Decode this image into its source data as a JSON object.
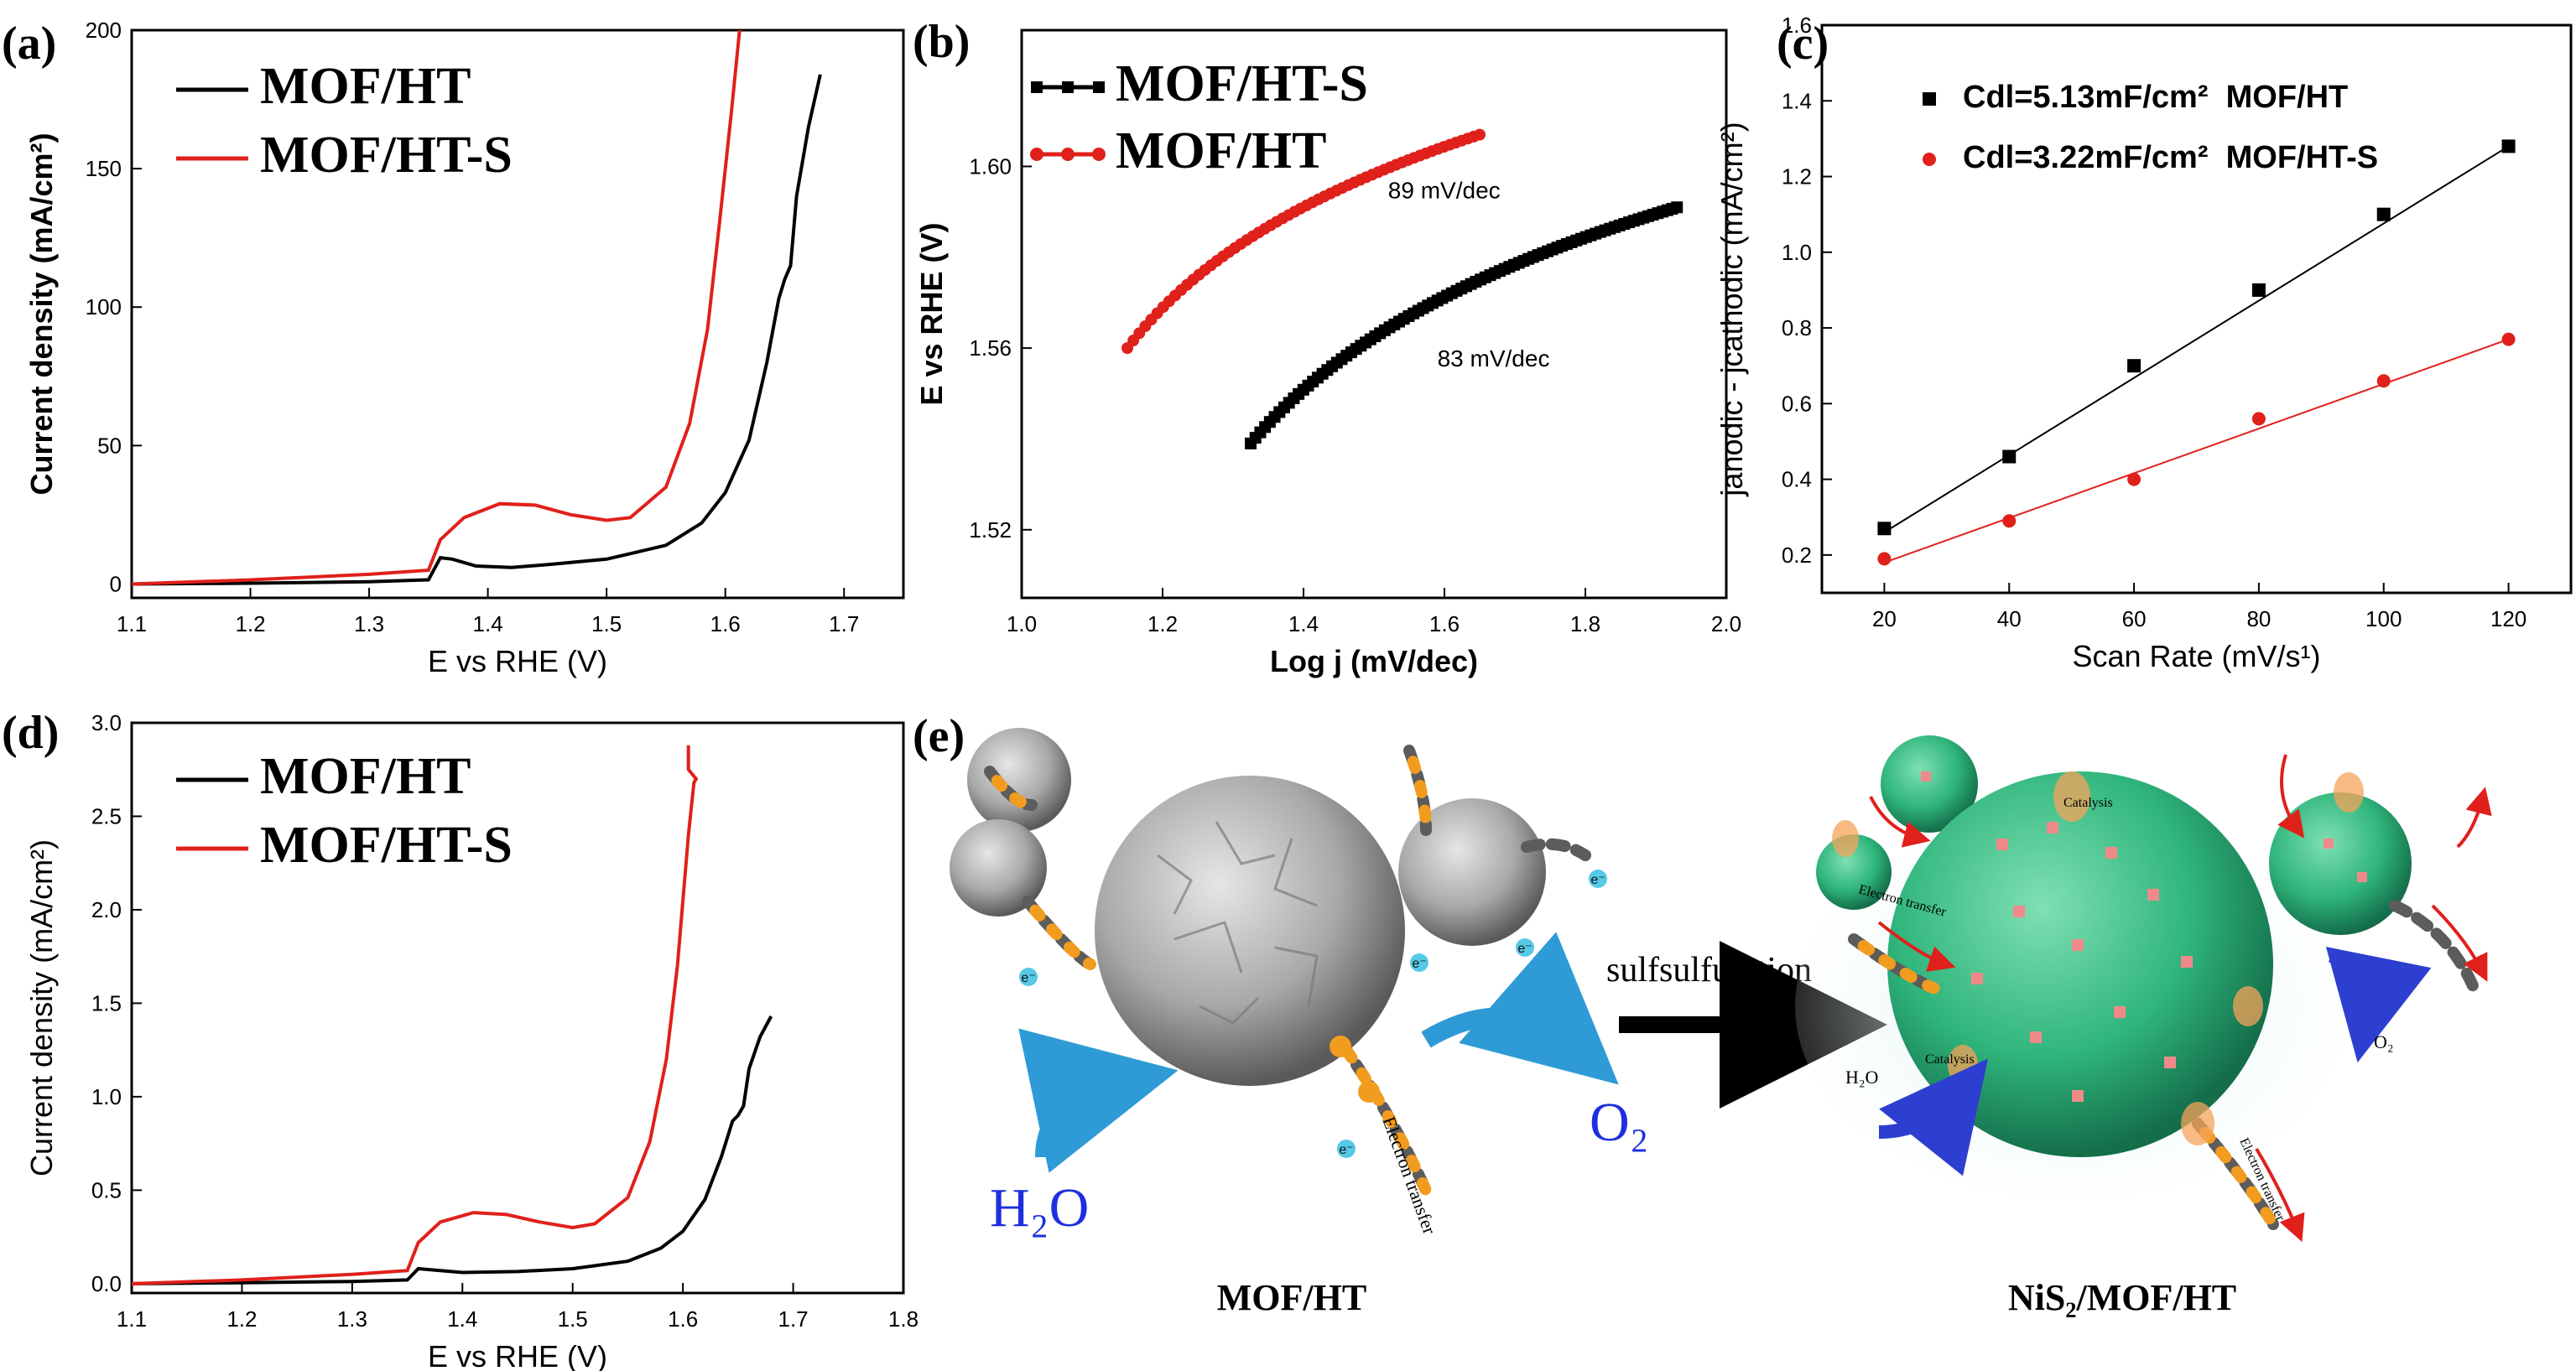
{
  "panel_labels": {
    "a": "(a)",
    "b": "(b)",
    "c": "(c)",
    "d": "(d)",
    "e": "(e)"
  },
  "chart_data": [
    {
      "id": "a",
      "type": "line",
      "xlabel": "E vs RHE (V)",
      "ylabel": "Current density (mA/cm²)",
      "xlim": [
        1.1,
        1.75
      ],
      "ylim": [
        -5,
        200
      ],
      "xticks": [
        1.1,
        1.2,
        1.3,
        1.4,
        1.5,
        1.6,
        1.7
      ],
      "yticks": [
        0,
        50,
        100,
        150,
        200
      ],
      "legend": [
        "MOF/HT",
        "MOF/HT-S"
      ],
      "series": [
        {
          "name": "MOF/HT",
          "color": "#000000",
          "points": [
            [
              1.1,
              0
            ],
            [
              1.2,
              0.3
            ],
            [
              1.3,
              0.8
            ],
            [
              1.35,
              1.5
            ],
            [
              1.36,
              9.5
            ],
            [
              1.37,
              9
            ],
            [
              1.39,
              6.5
            ],
            [
              1.42,
              6
            ],
            [
              1.45,
              7
            ],
            [
              1.5,
              9
            ],
            [
              1.55,
              14
            ],
            [
              1.58,
              22
            ],
            [
              1.6,
              33
            ],
            [
              1.62,
              52
            ],
            [
              1.635,
              80
            ],
            [
              1.645,
              103
            ],
            [
              1.65,
              110
            ],
            [
              1.655,
              115
            ],
            [
              1.66,
              140
            ],
            [
              1.67,
              165
            ],
            [
              1.68,
              184
            ]
          ]
        },
        {
          "name": "MOF/HT-S",
          "color": "#e0201b",
          "points": [
            [
              1.1,
              0
            ],
            [
              1.2,
              1.5
            ],
            [
              1.3,
              3.5
            ],
            [
              1.35,
              5
            ],
            [
              1.36,
              16
            ],
            [
              1.38,
              24
            ],
            [
              1.41,
              29
            ],
            [
              1.44,
              28.5
            ],
            [
              1.47,
              25
            ],
            [
              1.5,
              23
            ],
            [
              1.52,
              24
            ],
            [
              1.55,
              35
            ],
            [
              1.57,
              58
            ],
            [
              1.585,
              92
            ],
            [
              1.595,
              130
            ],
            [
              1.605,
              170
            ],
            [
              1.612,
              200
            ]
          ]
        }
      ]
    },
    {
      "id": "b",
      "type": "scatter",
      "xlabel": "Log j (mV/dec)",
      "ylabel": "E vs RHE (V)",
      "xlim": [
        1.0,
        2.0
      ],
      "ylim": [
        1.505,
        1.63
      ],
      "xticks": [
        1.0,
        1.2,
        1.4,
        1.6,
        1.8,
        2.0
      ],
      "yticks": [
        1.52,
        1.56,
        1.6
      ],
      "legend": [
        "MOF/HT-S",
        "MOF/HT"
      ],
      "annotations": [
        {
          "text": "89 mV/dec",
          "x": 1.52,
          "y": 1.593
        },
        {
          "text": "83 mV/dec",
          "x": 1.59,
          "y": 1.556
        }
      ],
      "series": [
        {
          "name": "MOF/HT-S",
          "color": "#000000",
          "marker": "square",
          "x_start": 1.325,
          "x_end": 1.93,
          "y_start": 1.539,
          "y_end": 1.591,
          "count": 90
        },
        {
          "name": "MOF/HT",
          "color": "#e0201b",
          "marker": "circle",
          "x_start": 1.15,
          "x_end": 1.65,
          "y_start": 1.56,
          "y_end": 1.607,
          "count": 60
        }
      ]
    },
    {
      "id": "c",
      "type": "scatter",
      "xlabel": "Scan Rate (mV/s¹)",
      "ylabel": "janodic - jcathodic (mA/cm²)",
      "xlim": [
        10,
        130
      ],
      "ylim": [
        0.1,
        1.6
      ],
      "xticks": [
        20,
        40,
        60,
        80,
        100,
        120
      ],
      "yticks": [
        0.2,
        0.4,
        0.6,
        0.8,
        1.0,
        1.2,
        1.4,
        1.6
      ],
      "legend": [
        "Cdl=5.13mF/cm²  MOF/HT",
        "Cdl=3.22mF/cm²  MOF/HT-S"
      ],
      "series": [
        {
          "name": "MOF/HT",
          "color": "#000000",
          "marker": "square",
          "x": [
            20,
            40,
            60,
            80,
            100,
            120
          ],
          "y": [
            0.27,
            0.46,
            0.7,
            0.9,
            1.1,
            1.28
          ],
          "fit": [
            [
              20,
              0.26
            ],
            [
              120,
              1.28
            ]
          ]
        },
        {
          "name": "MOF/HT-S",
          "color": "#e0201b",
          "marker": "circle",
          "x": [
            20,
            40,
            60,
            80,
            100,
            120
          ],
          "y": [
            0.19,
            0.29,
            0.4,
            0.56,
            0.66,
            0.77
          ],
          "fit": [
            [
              20,
              0.18
            ],
            [
              120,
              0.77
            ]
          ]
        }
      ]
    },
    {
      "id": "d",
      "type": "line",
      "xlabel": "E vs RHE (V)",
      "ylabel": "Current density (mA/cm²)",
      "xlim": [
        1.1,
        1.8
      ],
      "ylim": [
        -0.05,
        3.0
      ],
      "xticks": [
        1.1,
        1.2,
        1.3,
        1.4,
        1.5,
        1.6,
        1.7,
        1.8
      ],
      "yticks": [
        0.0,
        0.5,
        1.0,
        1.5,
        2.0,
        2.5,
        3.0
      ],
      "legend": [
        "MOF/HT",
        "MOF/HT-S"
      ],
      "series": [
        {
          "name": "MOF/HT",
          "color": "#000000",
          "points": [
            [
              1.1,
              0
            ],
            [
              1.2,
              0.005
            ],
            [
              1.3,
              0.012
            ],
            [
              1.35,
              0.02
            ],
            [
              1.36,
              0.08
            ],
            [
              1.37,
              0.075
            ],
            [
              1.4,
              0.06
            ],
            [
              1.45,
              0.065
            ],
            [
              1.5,
              0.08
            ],
            [
              1.55,
              0.12
            ],
            [
              1.58,
              0.19
            ],
            [
              1.6,
              0.28
            ],
            [
              1.62,
              0.45
            ],
            [
              1.635,
              0.68
            ],
            [
              1.645,
              0.87
            ],
            [
              1.65,
              0.9
            ],
            [
              1.655,
              0.95
            ],
            [
              1.66,
              1.15
            ],
            [
              1.67,
              1.32
            ],
            [
              1.68,
              1.43
            ]
          ]
        },
        {
          "name": "MOF/HT-S",
          "color": "#e0201b",
          "points": [
            [
              1.1,
              0
            ],
            [
              1.2,
              0.02
            ],
            [
              1.3,
              0.05
            ],
            [
              1.35,
              0.07
            ],
            [
              1.36,
              0.22
            ],
            [
              1.38,
              0.33
            ],
            [
              1.41,
              0.38
            ],
            [
              1.44,
              0.37
            ],
            [
              1.47,
              0.33
            ],
            [
              1.5,
              0.3
            ],
            [
              1.52,
              0.32
            ],
            [
              1.55,
              0.46
            ],
            [
              1.57,
              0.76
            ],
            [
              1.585,
              1.2
            ],
            [
              1.595,
              1.7
            ],
            [
              1.605,
              2.4
            ],
            [
              1.61,
              2.68
            ],
            [
              1.612,
              2.7
            ],
            [
              1.605,
              2.75
            ],
            [
              1.605,
              2.88
            ]
          ]
        }
      ]
    }
  ],
  "schematic": {
    "arrow_label": "sulfsulfuration",
    "left_caption": "MOF/HT",
    "right_caption": "NiS₂/MOF/HT",
    "h2o_left": "H₂O",
    "o2_left": "O₂",
    "h2o_right": "H₂O",
    "o2_right": "O₂",
    "electron": "e⁻",
    "electron_transfer": "Electron transfer",
    "catalysis": "Catalysis"
  }
}
